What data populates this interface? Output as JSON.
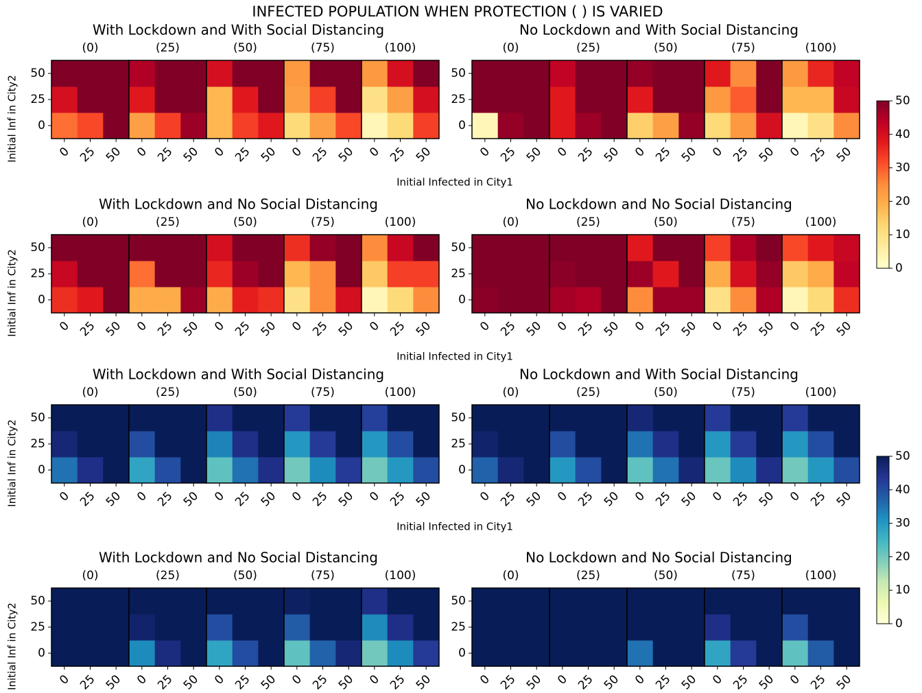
{
  "title": "INFECTED POPULATION WHEN PROTECTION ( ) IS VARIED",
  "colorbars": [
    {
      "colormap": "YlOrRd",
      "lim": [
        0,
        50
      ],
      "ticks": [
        0,
        10,
        20,
        30,
        40,
        50
      ]
    },
    {
      "colormap": "YlGnBu",
      "lim": [
        0,
        50
      ],
      "ticks": [
        0,
        10,
        20,
        30,
        40,
        50
      ]
    }
  ],
  "chart_data": [
    {
      "type": "heatmap",
      "title": "With Lockdown and With Social Distancing",
      "colormap": "YlOrRd",
      "clim": [
        0,
        50
      ],
      "xticks": [
        0,
        25,
        50
      ],
      "yticks": [
        0,
        25,
        50
      ],
      "xlabel": "Initial Infected in City1",
      "ylabel": "Initial Inf in City2",
      "panels": [
        {
          "title": "(0)",
          "values": [
            [
              28,
              32,
              50
            ],
            [
              40,
              50,
              50
            ],
            [
              50,
              50,
              50
            ]
          ]
        },
        {
          "title": "(25)",
          "values": [
            [
              22,
              33,
              47
            ],
            [
              38,
              50,
              50
            ],
            [
              45,
              50,
              50
            ]
          ]
        },
        {
          "title": "(50)",
          "values": [
            [
              18,
              33,
              38
            ],
            [
              18,
              38,
              50
            ],
            [
              40,
              50,
              50
            ]
          ]
        },
        {
          "title": "(75)",
          "values": [
            [
              12,
              22,
              32
            ],
            [
              22,
              33,
              50
            ],
            [
              23,
              50,
              50
            ]
          ]
        },
        {
          "title": "(100)",
          "values": [
            [
              3,
              12,
              33
            ],
            [
              10,
              22,
              40
            ],
            [
              23,
              40,
              50
            ]
          ]
        }
      ]
    },
    {
      "type": "heatmap",
      "title": "No Lockdown and With Social Distancing",
      "colormap": "YlOrRd",
      "clim": [
        0,
        50
      ],
      "xticks": [
        0,
        25,
        50
      ],
      "yticks": [
        0,
        25,
        50
      ],
      "panels": [
        {
          "title": "(0)",
          "values": [
            [
              3,
              48,
              50
            ],
            [
              50,
              50,
              50
            ],
            [
              50,
              50,
              50
            ]
          ]
        },
        {
          "title": "(25)",
          "values": [
            [
              38,
              47,
              50
            ],
            [
              38,
              50,
              50
            ],
            [
              43,
              50,
              50
            ]
          ]
        },
        {
          "title": "(50)",
          "values": [
            [
              14,
              22,
              48
            ],
            [
              38,
              50,
              50
            ],
            [
              48,
              50,
              50
            ]
          ]
        },
        {
          "title": "(75)",
          "values": [
            [
              12,
              23,
              40
            ],
            [
              23,
              30,
              50
            ],
            [
              38,
              25,
              50
            ]
          ]
        },
        {
          "title": "(100)",
          "values": [
            [
              3,
              10,
              25
            ],
            [
              18,
              18,
              42
            ],
            [
              23,
              36,
              43
            ]
          ]
        }
      ]
    },
    {
      "type": "heatmap",
      "title": "With Lockdown and No Social Distancing",
      "colormap": "YlOrRd",
      "clim": [
        0,
        50
      ],
      "xticks": [
        0,
        25,
        50
      ],
      "yticks": [
        0,
        25,
        50
      ],
      "xlabel": "Initial Infected in City1",
      "ylabel": "Initial Inf in City2",
      "panels": [
        {
          "title": "(0)",
          "values": [
            [
              35,
              38,
              50
            ],
            [
              42,
              50,
              50
            ],
            [
              50,
              50,
              50
            ]
          ]
        },
        {
          "title": "(25)",
          "values": [
            [
              20,
              20,
              47
            ],
            [
              28,
              50,
              50
            ],
            [
              50,
              50,
              50
            ]
          ]
        },
        {
          "title": "(50)",
          "values": [
            [
              20,
              37,
              35
            ],
            [
              36,
              47,
              50
            ],
            [
              40,
              50,
              50
            ]
          ]
        },
        {
          "title": "(75)",
          "values": [
            [
              10,
              25,
              40
            ],
            [
              18,
              25,
              50
            ],
            [
              35,
              48,
              50
            ]
          ]
        },
        {
          "title": "(100)",
          "values": [
            [
              3,
              12,
              25
            ],
            [
              15,
              33,
              33
            ],
            [
              25,
              42,
              50
            ]
          ]
        }
      ]
    },
    {
      "type": "heatmap",
      "title": "No Lockdown and No Social Distancing",
      "colormap": "YlOrRd",
      "clim": [
        0,
        50
      ],
      "xticks": [
        0,
        25,
        50
      ],
      "yticks": [
        0,
        25,
        50
      ],
      "panels": [
        {
          "title": "(0)",
          "values": [
            [
              49,
              50,
              50
            ],
            [
              50,
              50,
              50
            ],
            [
              50,
              50,
              50
            ]
          ]
        },
        {
          "title": "(25)",
          "values": [
            [
              46,
              45,
              50
            ],
            [
              49,
              50,
              50
            ],
            [
              50,
              50,
              50
            ]
          ]
        },
        {
          "title": "(50)",
          "values": [
            [
              25,
              47,
              47
            ],
            [
              47,
              38,
              50
            ],
            [
              38,
              50,
              50
            ]
          ]
        },
        {
          "title": "(75)",
          "values": [
            [
              10,
              25,
              45
            ],
            [
              20,
              40,
              48
            ],
            [
              33,
              45,
              50
            ]
          ]
        },
        {
          "title": "(100)",
          "values": [
            [
              3,
              12,
              35
            ],
            [
              15,
              20,
              43
            ],
            [
              32,
              38,
              42
            ]
          ]
        }
      ]
    },
    {
      "type": "heatmap",
      "title": "With Lockdown and With Social Distancing",
      "colormap": "YlGnBu",
      "clim": [
        0,
        50
      ],
      "xticks": [
        0,
        25,
        50
      ],
      "yticks": [
        0,
        25,
        50
      ],
      "xlabel": "Initial Infected in City1",
      "ylabel": "Initial Inf in City2",
      "panels": [
        {
          "title": "(0)",
          "values": [
            [
              35,
              45,
              50
            ],
            [
              47,
              50,
              50
            ],
            [
              50,
              50,
              50
            ]
          ]
        },
        {
          "title": "(25)",
          "values": [
            [
              28,
              40,
              50
            ],
            [
              40,
              50,
              50
            ],
            [
              50,
              50,
              50
            ]
          ]
        },
        {
          "title": "(50)",
          "values": [
            [
              22,
              35,
              45
            ],
            [
              33,
              45,
              50
            ],
            [
              45,
              50,
              50
            ]
          ]
        },
        {
          "title": "(75)",
          "values": [
            [
              20,
              32,
              43
            ],
            [
              30,
              43,
              50
            ],
            [
              43,
              50,
              50
            ]
          ]
        },
        {
          "title": "(100)",
          "values": [
            [
              20,
              30,
              40
            ],
            [
              30,
              40,
              50
            ],
            [
              42,
              50,
              50
            ]
          ]
        }
      ]
    },
    {
      "type": "heatmap",
      "title": "No Lockdown and With Social Distancing",
      "colormap": "YlGnBu",
      "clim": [
        0,
        50
      ],
      "xticks": [
        0,
        25,
        50
      ],
      "yticks": [
        0,
        25,
        50
      ],
      "panels": [
        {
          "title": "(0)",
          "values": [
            [
              37,
              47,
              50
            ],
            [
              48,
              50,
              50
            ],
            [
              50,
              50,
              50
            ]
          ]
        },
        {
          "title": "(25)",
          "values": [
            [
              30,
              40,
              50
            ],
            [
              40,
              50,
              50
            ],
            [
              50,
              50,
              50
            ]
          ]
        },
        {
          "title": "(50)",
          "values": [
            [
              22,
              35,
              47
            ],
            [
              35,
              45,
              50
            ],
            [
              47,
              50,
              50
            ]
          ]
        },
        {
          "title": "(75)",
          "values": [
            [
              21,
              32,
              45
            ],
            [
              30,
              43,
              50
            ],
            [
              43,
              50,
              50
            ]
          ]
        },
        {
          "title": "(100)",
          "values": [
            [
              20,
              30,
              40
            ],
            [
              30,
              40,
              50
            ],
            [
              43,
              50,
              50
            ]
          ]
        }
      ]
    },
    {
      "type": "heatmap",
      "title": "With Lockdown and No Social Distancing",
      "colormap": "YlGnBu",
      "clim": [
        0,
        50
      ],
      "xticks": [
        0,
        25,
        50
      ],
      "yticks": [
        0,
        25,
        50
      ],
      "ylabel": "Initial Inf in City2",
      "panels": [
        {
          "title": "(0)",
          "values": [
            [
              50,
              50,
              50
            ],
            [
              50,
              50,
              50
            ],
            [
              50,
              50,
              50
            ]
          ]
        },
        {
          "title": "(25)",
          "values": [
            [
              32,
              46,
              50
            ],
            [
              48,
              50,
              50
            ],
            [
              50,
              50,
              50
            ]
          ]
        },
        {
          "title": "(50)",
          "values": [
            [
              28,
              40,
              50
            ],
            [
              40,
              50,
              50
            ],
            [
              50,
              50,
              50
            ]
          ]
        },
        {
          "title": "(75)",
          "values": [
            [
              22,
              37,
              47
            ],
            [
              38,
              50,
              50
            ],
            [
              49,
              50,
              50
            ]
          ]
        },
        {
          "title": "(100)",
          "values": [
            [
              20,
              32,
              43
            ],
            [
              32,
              45,
              50
            ],
            [
              45,
              50,
              50
            ]
          ]
        }
      ]
    },
    {
      "type": "heatmap",
      "title": "No Lockdown and No Social Distancing",
      "colormap": "YlGnBu",
      "clim": [
        0,
        50
      ],
      "xticks": [
        0,
        25,
        50
      ],
      "yticks": [
        0,
        25,
        50
      ],
      "panels": [
        {
          "title": "(0)",
          "values": [
            [
              50,
              50,
              50
            ],
            [
              50,
              50,
              50
            ],
            [
              50,
              50,
              50
            ]
          ]
        },
        {
          "title": "(25)",
          "values": [
            [
              50,
              50,
              50
            ],
            [
              50,
              50,
              50
            ],
            [
              50,
              50,
              50
            ]
          ]
        },
        {
          "title": "(50)",
          "values": [
            [
              35,
              50,
              50
            ],
            [
              50,
              50,
              50
            ],
            [
              50,
              50,
              50
            ]
          ]
        },
        {
          "title": "(75)",
          "values": [
            [
              28,
              43,
              50
            ],
            [
              45,
              50,
              50
            ],
            [
              50,
              50,
              50
            ]
          ]
        },
        {
          "title": "(100)",
          "values": [
            [
              22,
              38,
              50
            ],
            [
              40,
              50,
              50
            ],
            [
              50,
              50,
              50
            ]
          ]
        }
      ]
    }
  ]
}
